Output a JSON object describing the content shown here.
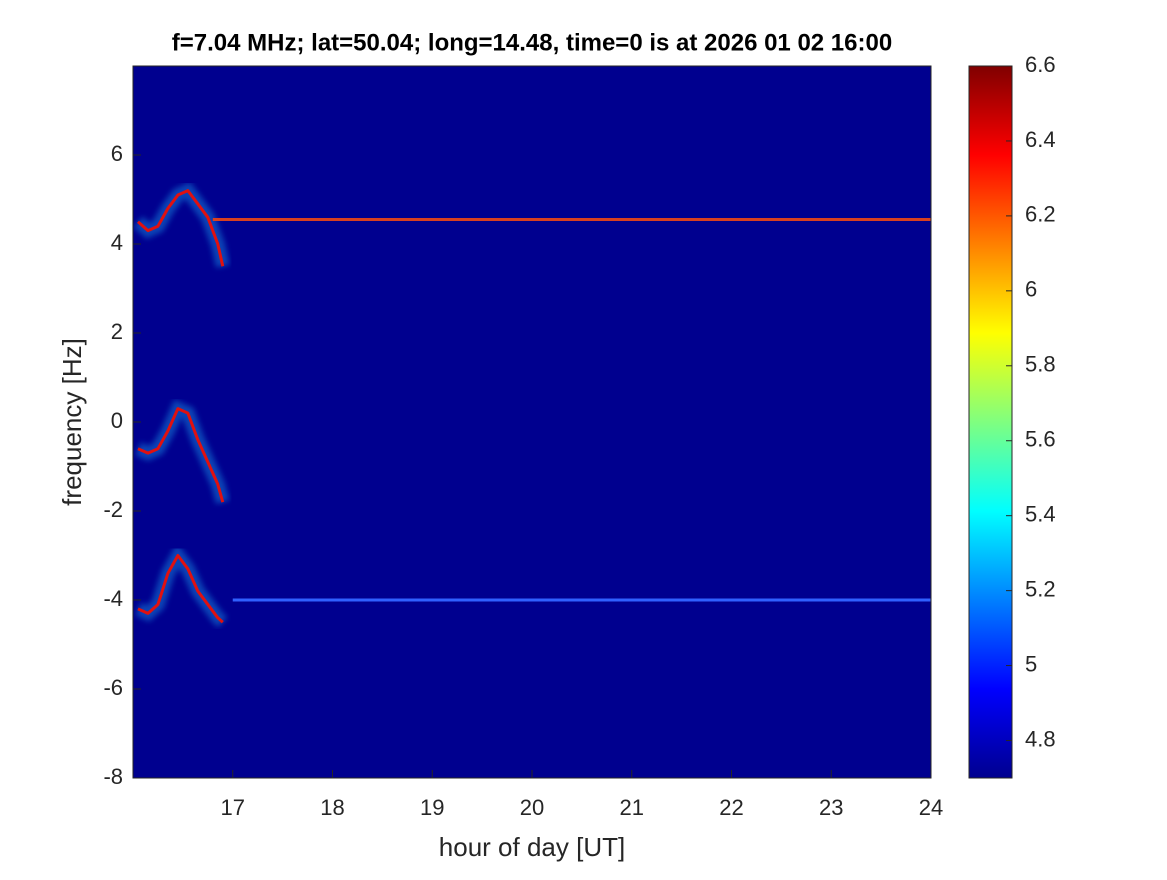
{
  "chart_data": {
    "type": "spectrogram",
    "title": "f=7.04 MHz;  lat=50.04; long=14.48, time=0 is at 2026 01 02 16:00",
    "xlabel": "hour of day [UT]",
    "ylabel": "frequency [Hz]",
    "xlim": [
      16,
      24
    ],
    "xticks": [
      17,
      18,
      19,
      20,
      21,
      22,
      23,
      24
    ],
    "ylim": [
      -8,
      8
    ],
    "yticks": [
      -8,
      -6,
      -4,
      -2,
      0,
      2,
      4,
      6
    ],
    "background": "#00008f",
    "colormap": "jet",
    "clim": [
      4.7,
      6.6
    ],
    "cticks": [
      4.8,
      5,
      5.2,
      5.4,
      5.6,
      5.8,
      6,
      6.2,
      6.4,
      6.6
    ],
    "series": [
      {
        "color": "#e01010",
        "x": [
          16.05,
          16.15,
          16.25,
          16.35,
          16.45,
          16.55,
          16.65,
          16.75,
          16.85,
          16.9
        ],
        "values": [
          4.5,
          4.3,
          4.4,
          4.8,
          5.1,
          5.2,
          4.9,
          4.6,
          4.0,
          3.5
        ]
      },
      {
        "color": "#e01010",
        "x": [
          16.05,
          16.15,
          16.25,
          16.35,
          16.45,
          16.55,
          16.65,
          16.75,
          16.85,
          16.9
        ],
        "values": [
          -0.6,
          -0.7,
          -0.6,
          -0.2,
          0.3,
          0.2,
          -0.4,
          -0.9,
          -1.4,
          -1.8
        ]
      },
      {
        "color": "#e01010",
        "x": [
          16.05,
          16.15,
          16.25,
          16.35,
          16.45,
          16.55,
          16.65,
          16.75,
          16.85,
          16.9
        ],
        "values": [
          -4.2,
          -4.3,
          -4.1,
          -3.4,
          -3.0,
          -3.3,
          -3.8,
          -4.1,
          -4.4,
          -4.5
        ]
      },
      {
        "color": "#d84020",
        "x": [
          16.8,
          24
        ],
        "values": [
          4.55,
          4.55
        ]
      },
      {
        "color": "#3060ff",
        "x": [
          17,
          24
        ],
        "values": [
          -4,
          -4
        ]
      }
    ]
  }
}
